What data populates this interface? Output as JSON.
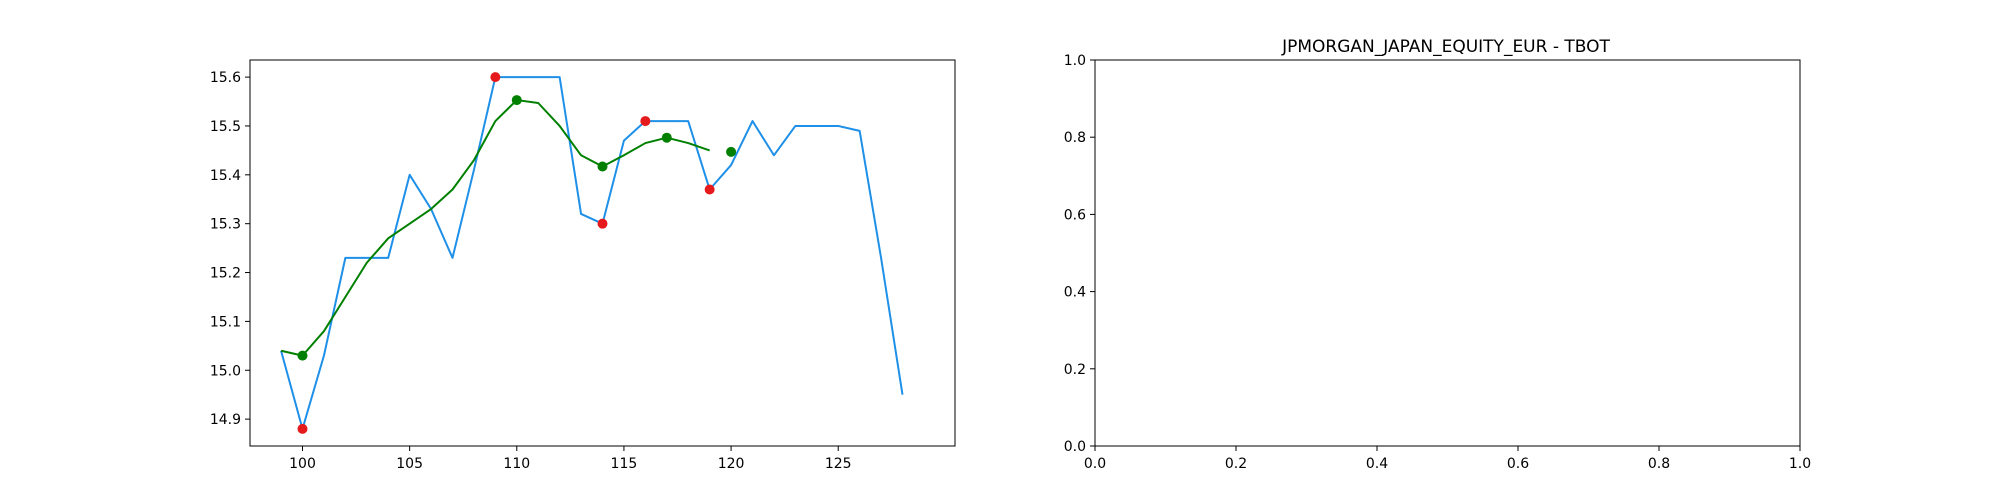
{
  "chart_data": [
    {
      "type": "line",
      "title": "",
      "xlabel": "",
      "ylabel": "",
      "xlim": [
        97.55,
        130.45
      ],
      "ylim": [
        14.845,
        15.635
      ],
      "xticks": [
        100,
        105,
        110,
        115,
        120,
        125
      ],
      "yticks": [
        14.9,
        15.0,
        15.1,
        15.2,
        15.3,
        15.4,
        15.5,
        15.6
      ],
      "grid": false,
      "series": [
        {
          "type": "line",
          "color": "#1e90e8",
          "points": [
            [
              99,
              15.04
            ],
            [
              100,
              14.88
            ],
            [
              101,
              15.03
            ],
            [
              102,
              15.23
            ],
            [
              103,
              15.23
            ],
            [
              104,
              15.23
            ],
            [
              105,
              15.4
            ],
            [
              106,
              15.33
            ],
            [
              107,
              15.23
            ],
            [
              108,
              15.41
            ],
            [
              109,
              15.6
            ],
            [
              110,
              15.6
            ],
            [
              111,
              15.6
            ],
            [
              112,
              15.6
            ],
            [
              113,
              15.32
            ],
            [
              114,
              15.3
            ],
            [
              115,
              15.47
            ],
            [
              116,
              15.51
            ],
            [
              117,
              15.51
            ],
            [
              118,
              15.51
            ],
            [
              119,
              15.37
            ],
            [
              120,
              15.42
            ],
            [
              121,
              15.51
            ],
            [
              122,
              15.44
            ],
            [
              123,
              15.5
            ],
            [
              124,
              15.5
            ],
            [
              125,
              15.5
            ],
            [
              126,
              15.49
            ],
            [
              127,
              15.23
            ],
            [
              128,
              14.95
            ]
          ]
        },
        {
          "type": "line",
          "color": "#008000",
          "points": [
            [
              99,
              15.04
            ],
            [
              100,
              15.03
            ],
            [
              101,
              15.08
            ],
            [
              102,
              15.15
            ],
            [
              103,
              15.22
            ],
            [
              104,
              15.27
            ],
            [
              105,
              15.3
            ],
            [
              106,
              15.33
            ],
            [
              107,
              15.37
            ],
            [
              108,
              15.43
            ],
            [
              109,
              15.51
            ],
            [
              110,
              15.553
            ],
            [
              111,
              15.547
            ],
            [
              112,
              15.5
            ],
            [
              113,
              15.44
            ],
            [
              114,
              15.417
            ],
            [
              115,
              15.44
            ],
            [
              116,
              15.465
            ],
            [
              117,
              15.476
            ],
            [
              118,
              15.465
            ],
            [
              119,
              15.45
            ]
          ]
        },
        {
          "type": "scatter",
          "color": "#e41a1c",
          "points": [
            [
              100,
              14.88
            ],
            [
              109,
              15.6
            ],
            [
              114,
              15.3
            ],
            [
              116,
              15.51
            ],
            [
              119,
              15.37
            ]
          ]
        },
        {
          "type": "scatter",
          "color": "#008000",
          "points": [
            [
              100,
              15.03
            ],
            [
              110,
              15.553
            ],
            [
              114,
              15.417
            ],
            [
              117,
              15.476
            ],
            [
              120,
              15.447
            ]
          ]
        }
      ]
    },
    {
      "type": "line",
      "title": "JPMORGAN_JAPAN_EQUITY_EUR - TBOT",
      "xlabel": "",
      "ylabel": "",
      "xlim": [
        0,
        1
      ],
      "ylim": [
        0,
        1
      ],
      "xticks": [
        0.0,
        0.2,
        0.4,
        0.6,
        0.8,
        1.0
      ],
      "yticks": [
        0.0,
        0.2,
        0.4,
        0.6,
        0.8,
        1.0
      ],
      "grid": false,
      "series": []
    }
  ]
}
